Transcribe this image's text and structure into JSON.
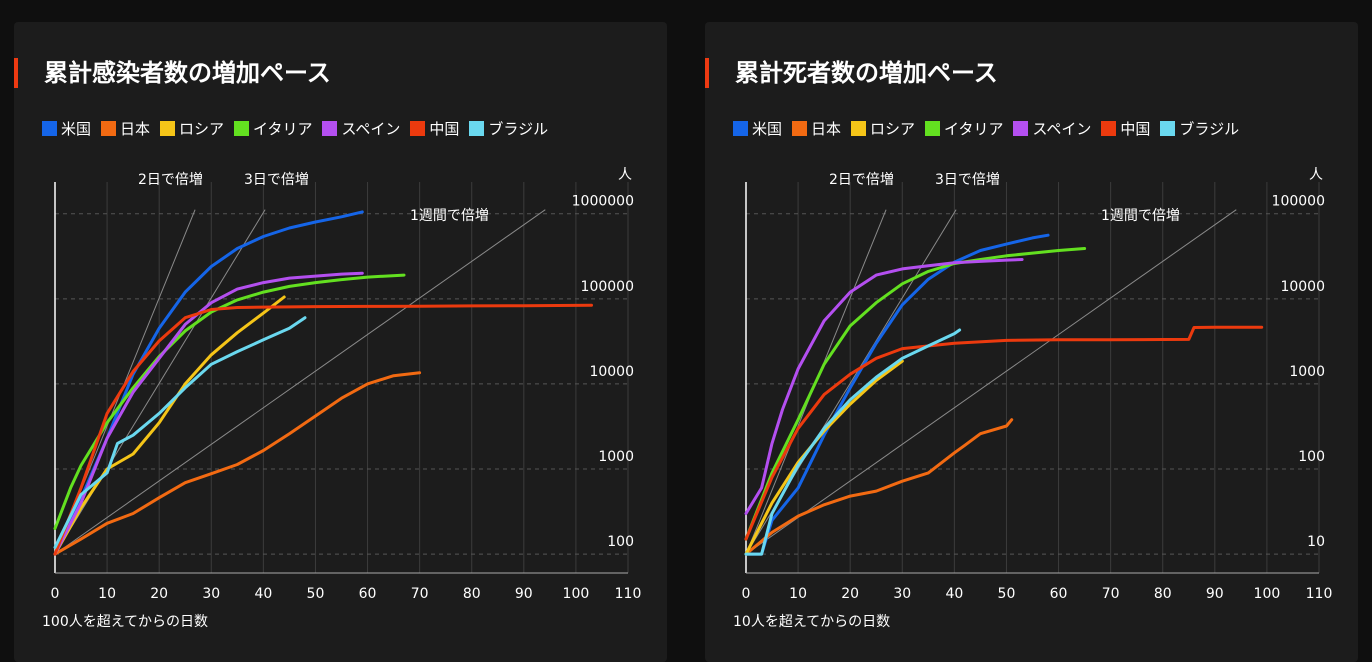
{
  "colors": {
    "米国": "#1565e8",
    "日本": "#f26a12",
    "ロシア": "#f5c518",
    "イタリア": "#63e020",
    "スペイン": "#b44ff0",
    "中国": "#ec3a0e",
    "ブラジル": "#6ad8ef"
  },
  "chart_data": [
    {
      "type": "line",
      "title": "累計感染者数の増加ペース",
      "xlabel": "100人を超えてからの日数",
      "ylabel": "人",
      "ylog": true,
      "xlim": [
        0,
        110
      ],
      "ylim": [
        60,
        1800000
      ],
      "xticks": [
        "0",
        "10",
        "20",
        "30",
        "40",
        "50",
        "60",
        "70",
        "80",
        "90",
        "100",
        "110"
      ],
      "yticks": [
        100,
        1000,
        10000,
        100000,
        1000000
      ],
      "ytick_labels": [
        "100",
        "1000",
        "10000",
        "100000",
        "1000000"
      ],
      "legend": [
        "米国",
        "日本",
        "ロシア",
        "イタリア",
        "スペイン",
        "中国",
        "ブラジル"
      ],
      "legend_position": "top",
      "grid": true,
      "reference_lines": [
        {
          "label": "2日で倍増",
          "doubling_days": 2
        },
        {
          "label": "3日で倍増",
          "doubling_days": 3
        },
        {
          "label": "1週間で倍増",
          "doubling_days": 7
        }
      ],
      "series": [
        {
          "name": "米国",
          "x": [
            0,
            5,
            10,
            15,
            20,
            25,
            30,
            35,
            40,
            45,
            50,
            55,
            59
          ],
          "y": [
            100,
            450,
            2300,
            13000,
            45000,
            120000,
            240000,
            390000,
            540000,
            680000,
            800000,
            920000,
            1050000
          ]
        },
        {
          "name": "日本",
          "x": [
            0,
            5,
            10,
            15,
            20,
            25,
            30,
            35,
            40,
            45,
            50,
            55,
            60,
            65,
            70
          ],
          "y": [
            100,
            150,
            230,
            300,
            460,
            690,
            880,
            1130,
            1650,
            2600,
            4200,
            6800,
            10000,
            12500,
            13500
          ]
        },
        {
          "name": "ロシア",
          "x": [
            0,
            5,
            10,
            15,
            20,
            25,
            30,
            35,
            40,
            44
          ],
          "y": [
            100,
            350,
            1000,
            1500,
            3500,
            10000,
            22000,
            40000,
            68000,
            105000
          ]
        },
        {
          "name": "イタリア",
          "x": [
            0,
            3,
            5,
            10,
            15,
            20,
            25,
            30,
            35,
            40,
            45,
            50,
            55,
            60,
            67
          ],
          "y": [
            200,
            600,
            1100,
            3500,
            9000,
            21000,
            42000,
            70000,
            97000,
            120000,
            140000,
            155000,
            168000,
            180000,
            190000
          ]
        },
        {
          "name": "スペイン",
          "x": [
            0,
            5,
            10,
            15,
            20,
            25,
            30,
            35,
            40,
            45,
            50,
            55,
            59
          ],
          "y": [
            100,
            400,
            2300,
            8000,
            20000,
            50000,
            90000,
            130000,
            155000,
            175000,
            185000,
            195000,
            200000
          ]
        },
        {
          "name": "中国",
          "x": [
            0,
            5,
            10,
            15,
            20,
            25,
            30,
            35,
            40,
            50,
            60,
            70,
            80,
            90,
            103
          ],
          "y": [
            100,
            600,
            4500,
            14000,
            32000,
            60000,
            75000,
            79000,
            80000,
            81000,
            81500,
            82000,
            82500,
            83000,
            84000
          ]
        },
        {
          "name": "ブラジル",
          "x": [
            0,
            5,
            10,
            12,
            15,
            20,
            25,
            30,
            35,
            40,
            45,
            48
          ],
          "y": [
            120,
            500,
            900,
            2000,
            2500,
            4500,
            9000,
            17000,
            24000,
            33000,
            45000,
            60000
          ]
        }
      ]
    },
    {
      "type": "line",
      "title": "累計死者数の増加ペース",
      "xlabel": "10人を超えてからの日数",
      "ylabel": "人",
      "ylog": true,
      "xlim": [
        0,
        110
      ],
      "ylim": [
        6,
        180000
      ],
      "xticks": [
        "0",
        "10",
        "20",
        "30",
        "40",
        "50",
        "60",
        "70",
        "80",
        "90",
        "100",
        "110"
      ],
      "yticks": [
        10,
        100,
        1000,
        10000,
        100000
      ],
      "ytick_labels": [
        "10",
        "100",
        "1000",
        "10000",
        "100000"
      ],
      "legend": [
        "米国",
        "日本",
        "ロシア",
        "イタリア",
        "スペイン",
        "中国",
        "ブラジル"
      ],
      "legend_position": "top",
      "grid": true,
      "reference_lines": [
        {
          "label": "2日で倍増",
          "doubling_days": 2
        },
        {
          "label": "3日で倍増",
          "doubling_days": 3
        },
        {
          "label": "1週間で倍増",
          "doubling_days": 7
        }
      ],
      "series": [
        {
          "name": "米国",
          "x": [
            0,
            3,
            5,
            10,
            15,
            20,
            25,
            30,
            35,
            40,
            45,
            50,
            55,
            58
          ],
          "y": [
            10,
            10,
            25,
            60,
            250,
            900,
            3000,
            8500,
            17000,
            27000,
            37000,
            44000,
            52000,
            56000
          ]
        },
        {
          "name": "日本",
          "x": [
            0,
            5,
            10,
            15,
            20,
            25,
            30,
            35,
            40,
            42,
            45,
            50,
            51
          ],
          "y": [
            10,
            18,
            28,
            38,
            48,
            55,
            72,
            90,
            155,
            190,
            260,
            320,
            380
          ]
        },
        {
          "name": "ロシア",
          "x": [
            0,
            5,
            10,
            15,
            20,
            25,
            30
          ],
          "y": [
            10,
            40,
            120,
            280,
            580,
            1100,
            1850
          ]
        },
        {
          "name": "イタリア",
          "x": [
            0,
            5,
            10,
            15,
            20,
            25,
            30,
            35,
            40,
            45,
            50,
            55,
            60,
            65
          ],
          "y": [
            15,
            90,
            380,
            1700,
            4800,
            9000,
            15000,
            21000,
            26000,
            29000,
            32000,
            34500,
            37000,
            39000
          ]
        },
        {
          "name": "スペイン",
          "x": [
            0,
            3,
            5,
            7,
            10,
            15,
            20,
            25,
            30,
            35,
            40,
            45,
            50,
            53
          ],
          "y": [
            30,
            60,
            200,
            500,
            1500,
            5500,
            12000,
            19000,
            22500,
            24500,
            26500,
            27500,
            28500,
            29000
          ]
        },
        {
          "name": "中国",
          "x": [
            0,
            5,
            10,
            15,
            20,
            25,
            30,
            40,
            50,
            60,
            70,
            80,
            85,
            86,
            90,
            99
          ],
          "y": [
            15,
            80,
            300,
            750,
            1300,
            2000,
            2600,
            3000,
            3250,
            3300,
            3300,
            3330,
            3340,
            4600,
            4630,
            4640
          ]
        },
        {
          "name": "ブラジル",
          "x": [
            0,
            1,
            3,
            5,
            10,
            15,
            20,
            25,
            30,
            35,
            40,
            41
          ],
          "y": [
            10,
            10,
            10,
            30,
            110,
            300,
            650,
            1200,
            2000,
            2800,
            3900,
            4300
          ]
        }
      ]
    }
  ]
}
